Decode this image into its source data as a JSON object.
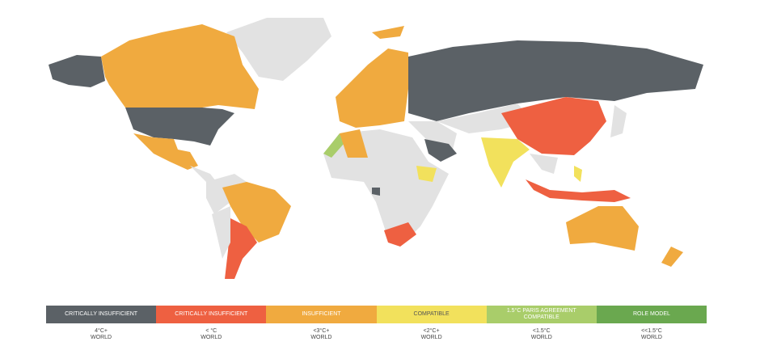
{
  "legend": [
    {
      "label": "CRITICALLY INSUFFICIENT",
      "range": "4°C+",
      "scope": "WORLD"
    },
    {
      "label": "CRITICALLY INSUFFICIENT",
      "range": "< °C",
      "scope": "WORLD"
    },
    {
      "label": "INSUFFICIENT",
      "range": "<3°C+",
      "scope": "WORLD"
    },
    {
      "label": "COMPATIBLE",
      "range": "<2°C+",
      "scope": "WORLD"
    },
    {
      "label": "1.5°C PARIS AGREEMENT COMPATIBLE",
      "range": "<1.5°C",
      "scope": "WORLD"
    },
    {
      "label": "ROLE MODEL",
      "range": "<<1.5°C",
      "scope": "WORLD"
    }
  ]
}
